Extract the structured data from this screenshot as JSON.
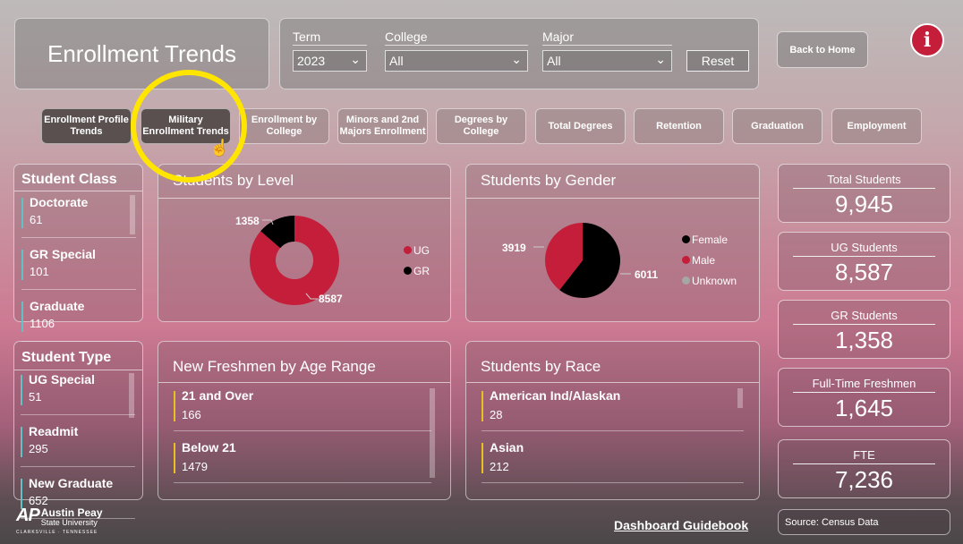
{
  "header": {
    "title": "Enrollment Trends",
    "back_home": "Back to Home",
    "info_icon": "info-icon"
  },
  "filters": {
    "term": {
      "label": "Term",
      "value": "2023"
    },
    "college": {
      "label": "College",
      "value": "All"
    },
    "major": {
      "label": "Major",
      "value": "All"
    },
    "reset": "Reset"
  },
  "nav": [
    {
      "label": "Enrollment Profile Trends",
      "active": true
    },
    {
      "label": "Military Enrollment Trends",
      "active": true
    },
    {
      "label": "Enrollment by College"
    },
    {
      "label": "Minors and 2nd Majors Enrollment"
    },
    {
      "label": "Degrees by College"
    },
    {
      "label": "Total Degrees"
    },
    {
      "label": "Retention"
    },
    {
      "label": "Graduation"
    },
    {
      "label": "Employment"
    }
  ],
  "student_class": {
    "title": "Student Class",
    "items": [
      {
        "name": "Doctorate",
        "value": "61"
      },
      {
        "name": "GR Special",
        "value": "101"
      },
      {
        "name": "Graduate",
        "value": "1106"
      }
    ]
  },
  "student_type": {
    "title": "Student Type",
    "items": [
      {
        "name": "UG Special",
        "value": "51"
      },
      {
        "name": "Readmit",
        "value": "295"
      },
      {
        "name": "New Graduate",
        "value": "652"
      }
    ]
  },
  "freshmen_age": {
    "title": "New Freshmen by Age Range",
    "items": [
      {
        "name": "21 and Over",
        "value": "166"
      },
      {
        "name": "Below 21",
        "value": "1479"
      }
    ]
  },
  "race": {
    "title": "Students by Race",
    "items": [
      {
        "name": "American Ind/Alaskan",
        "value": "28"
      },
      {
        "name": "Asian",
        "value": "212"
      }
    ]
  },
  "chart_data": [
    {
      "type": "pie",
      "variant": "donut",
      "title": "Students by Level",
      "categories": [
        "UG",
        "GR"
      ],
      "values": [
        8587,
        1358
      ],
      "colors": [
        "#c41e3a",
        "#000000"
      ],
      "legend": "right"
    },
    {
      "type": "pie",
      "title": "Students by Gender",
      "categories": [
        "Female",
        "Male",
        "Unknown"
      ],
      "values": [
        6011,
        3919,
        null
      ],
      "colors": [
        "#000000",
        "#c41e3a",
        "#a6a6a6"
      ],
      "legend": "right"
    }
  ],
  "kpis": [
    {
      "label": "Total Students",
      "value": "9,945"
    },
    {
      "label": "UG Students",
      "value": "8,587"
    },
    {
      "label": "GR Students",
      "value": "1,358"
    },
    {
      "label": "Full-Time Freshmen",
      "value": "1,645"
    },
    {
      "label": "FTE",
      "value": "7,236"
    }
  ],
  "footer": {
    "logo": "Austin Peay State University Clarksville Tennessee",
    "guidebook": "Dashboard Guidebook",
    "source": "Source: Census Data"
  }
}
